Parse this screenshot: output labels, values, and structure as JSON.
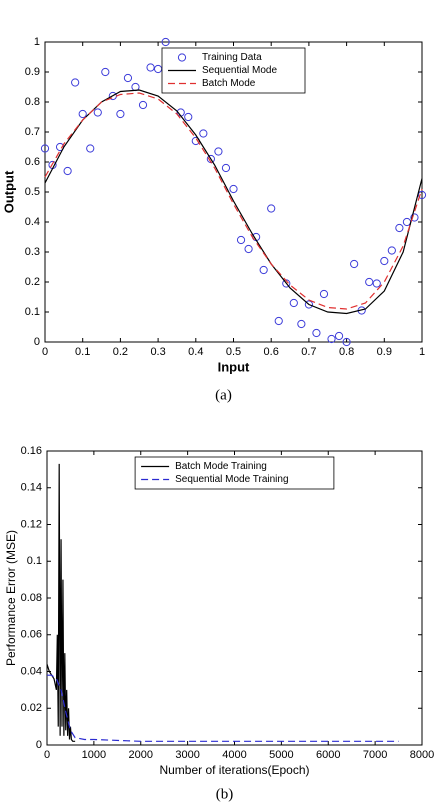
{
  "chart_data": [
    {
      "type": "line",
      "caption": "(a)",
      "x_label": "Input",
      "y_label": "Output",
      "label_bold": true,
      "xlim": [
        0,
        1
      ],
      "xticks": [
        0,
        0.1,
        0.2,
        0.3,
        0.4,
        0.5,
        0.6,
        0.7,
        0.8,
        0.9,
        1
      ],
      "ylim": [
        0,
        1
      ],
      "yticks": [
        0,
        0.1,
        0.2,
        0.3,
        0.4,
        0.5,
        0.6,
        0.7,
        0.8,
        0.9,
        1
      ],
      "legend": "upper center",
      "series": [
        {
          "name": "Training Data",
          "color": "#3b3bd9",
          "marker": "circle",
          "x": [
            0,
            0.02,
            0.04,
            0.06,
            0.08,
            0.1,
            0.12,
            0.14,
            0.16,
            0.18,
            0.2,
            0.22,
            0.24,
            0.26,
            0.28,
            0.3,
            0.32,
            0.34,
            0.36,
            0.38,
            0.4,
            0.42,
            0.44,
            0.46,
            0.48,
            0.5,
            0.52,
            0.54,
            0.56,
            0.58,
            0.6,
            0.62,
            0.64,
            0.66,
            0.68,
            0.7,
            0.72,
            0.74,
            0.76,
            0.78,
            0.8,
            0.82,
            0.84,
            0.86,
            0.88,
            0.9,
            0.92,
            0.94,
            0.96,
            0.98,
            1.0
          ],
          "values": [
            0.645,
            0.59,
            0.65,
            0.57,
            0.865,
            0.76,
            0.645,
            0.765,
            0.9,
            0.82,
            0.76,
            0.88,
            0.85,
            0.79,
            0.915,
            0.91,
            1.0,
            0.87,
            0.765,
            0.75,
            0.67,
            0.695,
            0.61,
            0.635,
            0.58,
            0.51,
            0.34,
            0.31,
            0.35,
            0.24,
            0.445,
            0.07,
            0.195,
            0.13,
            0.06,
            0.125,
            0.03,
            0.16,
            0.01,
            0.02,
            0.0,
            0.26,
            0.105,
            0.2,
            0.195,
            0.27,
            0.305,
            0.38,
            0.4,
            0.415,
            0.49
          ]
        },
        {
          "name": "Sequential Mode",
          "color": "#000000",
          "x": [
            0,
            0.05,
            0.1,
            0.15,
            0.2,
            0.25,
            0.3,
            0.35,
            0.4,
            0.45,
            0.5,
            0.55,
            0.6,
            0.65,
            0.7,
            0.75,
            0.8,
            0.85,
            0.9,
            0.95,
            1.0
          ],
          "values": [
            0.53,
            0.65,
            0.74,
            0.8,
            0.835,
            0.84,
            0.82,
            0.77,
            0.69,
            0.59,
            0.47,
            0.36,
            0.26,
            0.18,
            0.125,
            0.1,
            0.095,
            0.11,
            0.17,
            0.3,
            0.545
          ]
        },
        {
          "name": "Batch Mode",
          "color": "#e03030",
          "dash": true,
          "x": [
            0,
            0.05,
            0.1,
            0.15,
            0.2,
            0.25,
            0.3,
            0.35,
            0.4,
            0.45,
            0.5,
            0.55,
            0.6,
            0.65,
            0.7,
            0.75,
            0.8,
            0.85,
            0.9,
            0.95,
            1.0
          ],
          "values": [
            0.55,
            0.66,
            0.74,
            0.8,
            0.825,
            0.83,
            0.81,
            0.76,
            0.68,
            0.58,
            0.46,
            0.35,
            0.26,
            0.19,
            0.14,
            0.115,
            0.11,
            0.13,
            0.2,
            0.32,
            0.51
          ]
        }
      ]
    },
    {
      "type": "line",
      "caption": "(b)",
      "x_label": "Number of iterations(Epoch)",
      "y_label": "Performance Error (MSE)",
      "label_bold": false,
      "xlim": [
        0,
        8000
      ],
      "xticks": [
        0,
        1000,
        2000,
        3000,
        4000,
        5000,
        6000,
        7000,
        8000
      ],
      "ylim": [
        0,
        0.16
      ],
      "yticks": [
        0,
        0.02,
        0.04,
        0.06,
        0.08,
        0.1,
        0.12,
        0.14,
        0.16
      ],
      "legend": "upper center",
      "series": [
        {
          "name": "Batch Mode Training",
          "color": "#000000",
          "x": [
            0,
            50,
            100,
            150,
            200,
            220,
            240,
            260,
            280,
            300,
            320,
            340,
            360,
            380,
            400,
            420,
            440,
            460,
            480,
            500,
            520,
            550,
            600
          ],
          "values": [
            0.044,
            0.04,
            0.038,
            0.036,
            0.03,
            0.06,
            0.01,
            0.153,
            0.005,
            0.112,
            0.01,
            0.09,
            0.005,
            0.05,
            0.008,
            0.03,
            0.005,
            0.02,
            0.003,
            0.01,
            0.003,
            0.002,
            0.002
          ]
        },
        {
          "name": "Sequential Mode Training",
          "color": "#2a2ad0",
          "dash": true,
          "x": [
            0,
            100,
            200,
            300,
            400,
            500,
            600,
            800,
            1000,
            2000,
            3000,
            4000,
            5000,
            6000,
            7000,
            7500
          ],
          "values": [
            0.038,
            0.038,
            0.036,
            0.03,
            0.018,
            0.008,
            0.004,
            0.003,
            0.003,
            0.002,
            0.002,
            0.002,
            0.002,
            0.002,
            0.002,
            0.002
          ]
        }
      ]
    }
  ]
}
